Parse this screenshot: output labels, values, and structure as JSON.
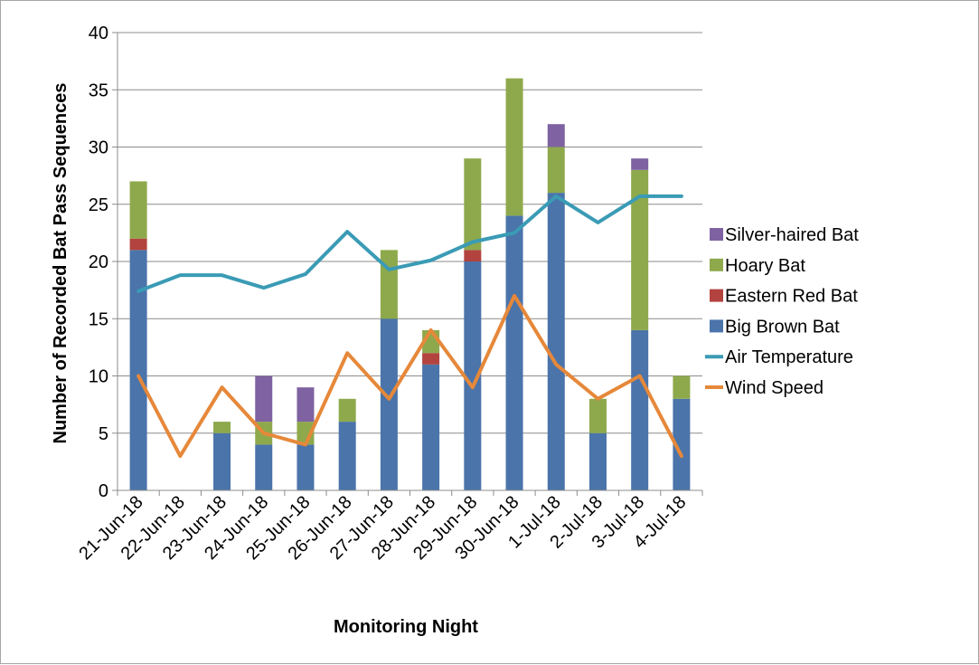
{
  "chart_data": {
    "type": "bar",
    "stacked": true,
    "xlabel": "Monitoring Night",
    "ylabel": "Number of Recorded Bat Pass Sequences",
    "ylim": [
      0,
      40
    ],
    "yticks": [
      0,
      5,
      10,
      15,
      20,
      25,
      30,
      35,
      40
    ],
    "grid": true,
    "legend_position": "right",
    "categories": [
      "21-Jun-18",
      "22-Jun-18",
      "23-Jun-18",
      "24-Jun-18",
      "25-Jun-18",
      "26-Jun-18",
      "27-Jun-18",
      "28-Jun-18",
      "29-Jun-18",
      "30-Jun-18",
      "1-Jul-18",
      "2-Jul-18",
      "3-Jul-18",
      "4-Jul-18"
    ],
    "series": [
      {
        "name": "Big Brown Bat",
        "kind": "bar",
        "color": "#4a74aa",
        "values": [
          21,
          0,
          5,
          4,
          4,
          6,
          15,
          11,
          20,
          24,
          26,
          5,
          14,
          8
        ]
      },
      {
        "name": "Eastern Red Bat",
        "kind": "bar",
        "color": "#b2433f",
        "values": [
          1,
          0,
          0,
          0,
          0,
          0,
          0,
          1,
          1,
          0,
          0,
          0,
          0,
          0
        ]
      },
      {
        "name": "Hoary Bat",
        "kind": "bar",
        "color": "#8ea94c",
        "values": [
          5,
          0,
          1,
          2,
          2,
          2,
          6,
          2,
          8,
          12,
          4,
          3,
          14,
          2
        ]
      },
      {
        "name": "Silver-haired Bat",
        "kind": "bar",
        "color": "#7f62a1",
        "values": [
          0,
          0,
          0,
          4,
          3,
          0,
          0,
          0,
          0,
          0,
          2,
          0,
          1,
          0
        ]
      },
      {
        "name": "Air Temperature",
        "kind": "line",
        "color": "#3a9bb5",
        "values": [
          17.4,
          18.8,
          18.8,
          17.7,
          18.9,
          22.6,
          19.3,
          20.1,
          21.7,
          22.5,
          25.7,
          23.4,
          25.7,
          25.7
        ]
      },
      {
        "name": "Wind Speed",
        "kind": "line",
        "color": "#e6883a",
        "values": [
          10,
          3,
          9,
          5,
          4,
          12,
          8,
          14,
          9,
          17,
          11,
          8,
          10,
          3
        ]
      }
    ],
    "legend_order": [
      "Silver-haired Bat",
      "Hoary Bat",
      "Eastern Red Bat",
      "Big Brown Bat",
      "Air Temperature",
      "Wind Speed"
    ]
  }
}
